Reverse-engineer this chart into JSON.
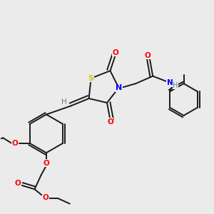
{
  "background_color": "#ebebeb",
  "bond_color": "#1a1a1a",
  "atom_colors": {
    "S": "#cccc00",
    "N": "#0000ff",
    "O": "#ff0000",
    "H": "#5a8080",
    "C": "#1a1a1a"
  },
  "figsize": [
    3.0,
    3.0
  ],
  "dpi": 100
}
